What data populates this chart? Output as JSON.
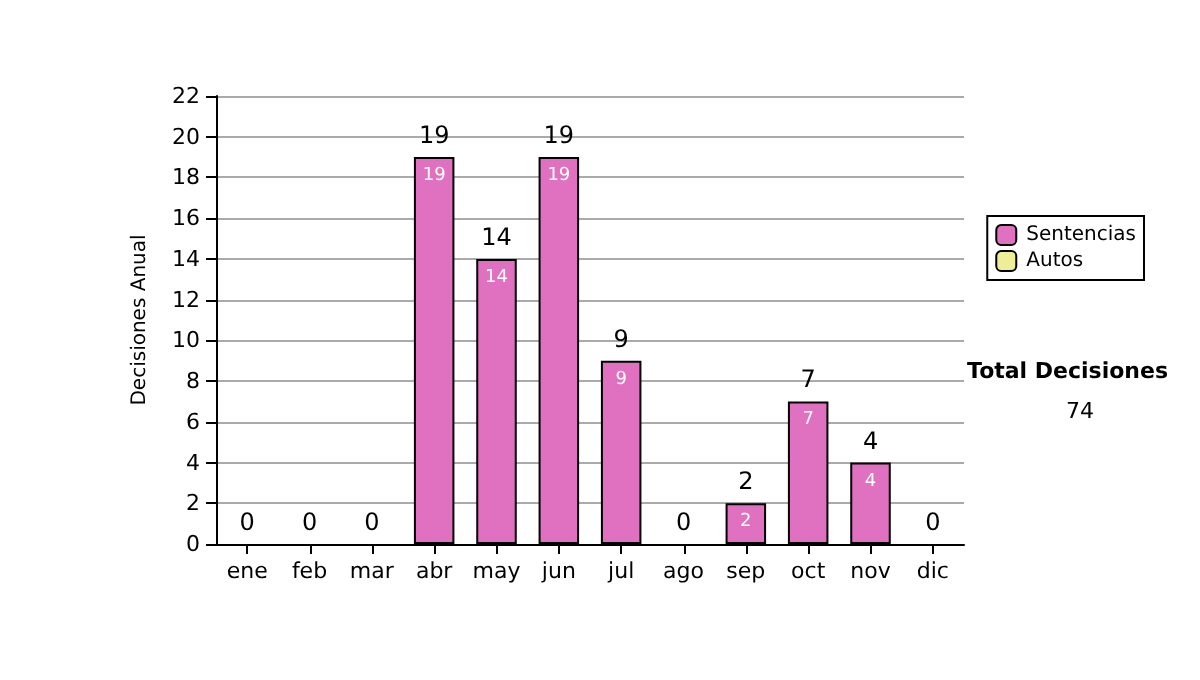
{
  "chart_data": {
    "type": "bar",
    "ylabel": "Decisiones Anual",
    "stacked": true,
    "categories": [
      "ene",
      "feb",
      "mar",
      "abr",
      "may",
      "jun",
      "jul",
      "ago",
      "sep",
      "oct",
      "nov",
      "dic"
    ],
    "series": [
      {
        "name": "Sentencias",
        "color": "#e070c0",
        "values": [
          0,
          0,
          0,
          19,
          14,
          19,
          9,
          0,
          2,
          7,
          4,
          0
        ],
        "value_labels": [
          null,
          null,
          null,
          "19",
          "14",
          "19",
          "9",
          null,
          "2",
          "7",
          "4",
          null
        ]
      },
      {
        "name": "Autos",
        "color": "#eeee99",
        "values": [
          0,
          0,
          0,
          0,
          0,
          0,
          0,
          0,
          0,
          0,
          0,
          0
        ]
      }
    ],
    "totals": [
      "0",
      "0",
      "0",
      "19",
      "14",
      "19",
      "9",
      "0",
      "2",
      "7",
      "4",
      "0"
    ],
    "ylim": [
      0,
      22
    ],
    "yticks": [
      0,
      2,
      4,
      6,
      8,
      10,
      12,
      14,
      16,
      18,
      20,
      22
    ],
    "grid": "y",
    "legend": "right",
    "annotations": [
      "Total Decisiones",
      "74"
    ]
  }
}
